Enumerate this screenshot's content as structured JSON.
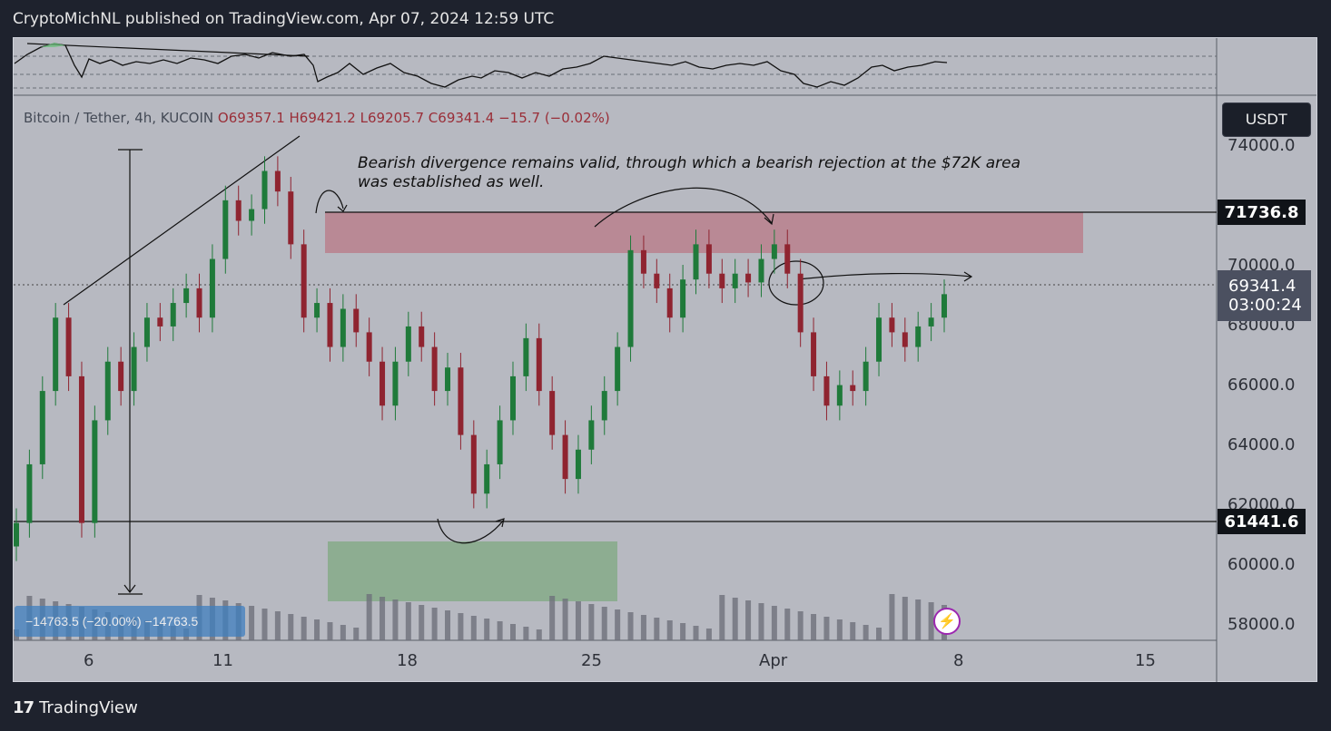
{
  "header": {
    "text": "CryptoMichNL published on TradingView.com, Apr 07, 2024 12:59 UTC"
  },
  "symbol": {
    "name": "Bitcoin / Tether, 4h, KUCOIN",
    "open": "O69357.1",
    "high": "H69421.2",
    "low": "L69205.7",
    "close": "C69341.4",
    "change": "−15.7 (−0.02%)"
  },
  "currency": "USDT",
  "annotation": {
    "line1": "Bearish divergence remains valid, through which a bearish rejection at the $72K area",
    "line2": "was established as well."
  },
  "price_axis": [
    "74000.0",
    "70000.0",
    "68000.0",
    "66000.0",
    "64000.0",
    "62000.0",
    "60000.0",
    "58000.0"
  ],
  "price_tags": {
    "resistance": "71736.8",
    "support": "61441.6",
    "last": "69341.4",
    "countdown": "03:00:24"
  },
  "time_axis": [
    "6",
    "11",
    "18",
    "25",
    "Apr",
    "8",
    "15"
  ],
  "measure_label": "−14763.5 (−20.00%) −14763.5",
  "footer": {
    "brand": "TradingView",
    "mark": "17"
  },
  "colors": {
    "up": "#1f7a3a",
    "down": "#8f2430",
    "resistance_zone": "#b97a86",
    "support_zone": "#7faa80",
    "chart_bg": "#b7b9c1",
    "page_bg": "#1e222d"
  },
  "icons": [
    "tradingview-logo-icon",
    "lightning-bolt-icon"
  ],
  "chart_data": {
    "type": "candlestick",
    "symbol": "Bitcoin / Tether",
    "timeframe": "4h",
    "exchange": "KUCOIN",
    "ylim": [
      57500,
      75000
    ],
    "levels": [
      71736.8,
      61441.6,
      69341.4
    ],
    "resistance_zone": [
      70400,
      71750
    ],
    "support_zone_volume": true,
    "x_ticks": [
      "6",
      "11",
      "18",
      "25",
      "Apr",
      "8",
      "15"
    ],
    "path_points": [
      [
        61500,
        "up"
      ],
      [
        63500,
        "up"
      ],
      [
        66000,
        "up"
      ],
      [
        68500,
        "up"
      ],
      [
        66500,
        "down"
      ],
      [
        61500,
        "down"
      ],
      [
        65000,
        "up"
      ],
      [
        67000,
        "up"
      ],
      [
        66000,
        "down"
      ],
      [
        67500,
        "up"
      ],
      [
        68500,
        "up"
      ],
      [
        68200,
        "down"
      ],
      [
        69000,
        "up"
      ],
      [
        69500,
        "up"
      ],
      [
        68500,
        "down"
      ],
      [
        70500,
        "up"
      ],
      [
        72500,
        "up"
      ],
      [
        71800,
        "down"
      ],
      [
        72200,
        "up"
      ],
      [
        73500,
        "up"
      ],
      [
        72800,
        "down"
      ],
      [
        71000,
        "down"
      ],
      [
        68500,
        "down"
      ],
      [
        69000,
        "up"
      ],
      [
        67500,
        "down"
      ],
      [
        68800,
        "up"
      ],
      [
        68000,
        "down"
      ],
      [
        67000,
        "down"
      ],
      [
        65500,
        "down"
      ],
      [
        67000,
        "up"
      ],
      [
        68200,
        "up"
      ],
      [
        67500,
        "down"
      ],
      [
        66000,
        "down"
      ],
      [
        66800,
        "up"
      ],
      [
        64500,
        "down"
      ],
      [
        62500,
        "down"
      ],
      [
        63500,
        "up"
      ],
      [
        65000,
        "up"
      ],
      [
        66500,
        "up"
      ],
      [
        67800,
        "up"
      ],
      [
        66000,
        "down"
      ],
      [
        64500,
        "down"
      ],
      [
        63000,
        "down"
      ],
      [
        64000,
        "up"
      ],
      [
        65000,
        "up"
      ],
      [
        66000,
        "up"
      ],
      [
        67500,
        "up"
      ],
      [
        70800,
        "up"
      ],
      [
        70000,
        "down"
      ],
      [
        69500,
        "down"
      ],
      [
        68500,
        "down"
      ],
      [
        69800,
        "up"
      ],
      [
        71000,
        "up"
      ],
      [
        70000,
        "down"
      ],
      [
        69500,
        "down"
      ],
      [
        70000,
        "up"
      ],
      [
        69700,
        "down"
      ],
      [
        70500,
        "up"
      ],
      [
        71000,
        "up"
      ],
      [
        70000,
        "down"
      ],
      [
        68000,
        "down"
      ],
      [
        66500,
        "down"
      ],
      [
        65500,
        "down"
      ],
      [
        66200,
        "up"
      ],
      [
        66000,
        "down"
      ],
      [
        67000,
        "up"
      ],
      [
        68500,
        "up"
      ],
      [
        68000,
        "down"
      ],
      [
        67500,
        "down"
      ],
      [
        68200,
        "up"
      ],
      [
        68500,
        "up"
      ],
      [
        69300,
        "up"
      ]
    ]
  }
}
